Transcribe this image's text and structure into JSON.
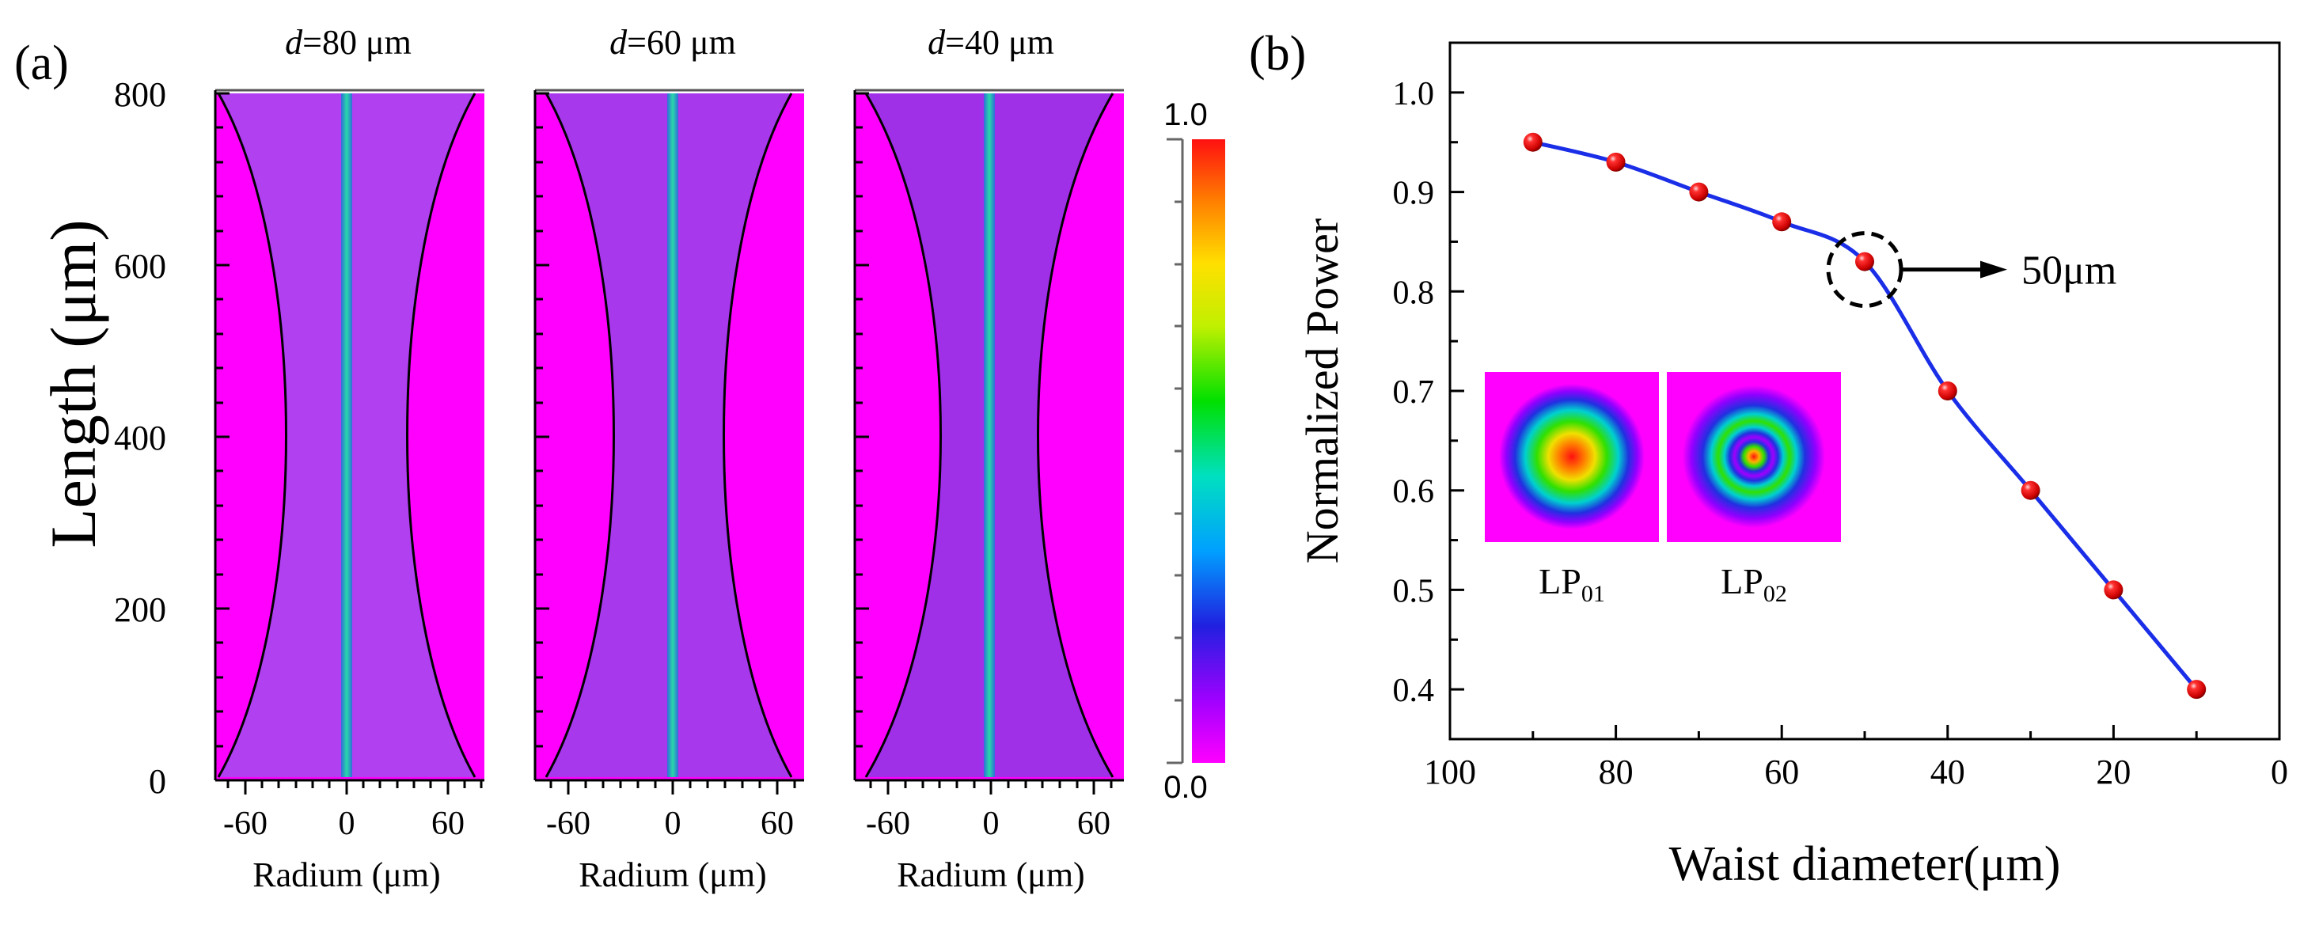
{
  "panel_a": {
    "label": "(a)",
    "ylabel": "Length (μm)",
    "yticks": [
      "0",
      "200",
      "400",
      "600",
      "800"
    ],
    "ytick_values": [
      0,
      200,
      400,
      600,
      800
    ],
    "ylim": [
      0,
      800
    ],
    "xlim": [
      -80,
      80
    ],
    "subplots": [
      {
        "title_italic": "d",
        "title_rest": "=80 μm",
        "xlabel": "Radium (μm)",
        "xticks": [
          "-60",
          "0",
          "60"
        ],
        "xtick_values": [
          -60,
          0,
          60
        ],
        "waist_diameter_um": 80
      },
      {
        "title_italic": "d",
        "title_rest": "=60 μm",
        "xlabel": "Radium (μm)",
        "xticks": [
          "-60",
          "0",
          "60"
        ],
        "xtick_values": [
          -60,
          0,
          60
        ],
        "waist_diameter_um": 60
      },
      {
        "title_italic": "d",
        "title_rest": "=40 μm",
        "xlabel": "Radium (μm)",
        "xticks": [
          "-60",
          "0",
          "60"
        ],
        "xtick_values": [
          -60,
          0,
          60
        ],
        "waist_diameter_um": 40
      }
    ],
    "colorbar": {
      "max_label": "1.0",
      "min_label": "0.0",
      "range": [
        0.0,
        1.0
      ]
    },
    "colors": {
      "background": "#ff00ff",
      "cladding": "#b040f0",
      "core": "#20c8b0",
      "taper_line": "#000000"
    }
  },
  "panel_b": {
    "label": "(b)",
    "annotation": "50μm",
    "insets": [
      {
        "name_main": "LP",
        "name_sub": "01"
      },
      {
        "name_main": "LP",
        "name_sub": "02"
      }
    ]
  },
  "chart_data": {
    "type": "line",
    "title": "",
    "xlabel": "Waist diameter(μm)",
    "ylabel": "Normalized Power",
    "xlim": [
      100,
      0
    ],
    "ylim": [
      0.35,
      1.05
    ],
    "xticks": [
      100,
      80,
      60,
      40,
      20,
      0
    ],
    "yticks": [
      0.4,
      0.5,
      0.6,
      0.7,
      0.8,
      0.9,
      1.0
    ],
    "xtick_labels": [
      "100",
      "80",
      "60",
      "40",
      "20",
      "0"
    ],
    "ytick_labels": [
      "0.4",
      "0.5",
      "0.6",
      "0.7",
      "0.8",
      "0.9",
      "1.0"
    ],
    "highlight_x": 50,
    "series": [
      {
        "name": "Normalized Power",
        "color": "#1a2ee8",
        "marker_color": "#e8141a",
        "x": [
          90,
          80,
          70,
          60,
          50,
          40,
          30,
          20,
          10
        ],
        "y": [
          0.95,
          0.93,
          0.9,
          0.87,
          0.83,
          0.7,
          0.6,
          0.5,
          0.4
        ]
      }
    ]
  }
}
